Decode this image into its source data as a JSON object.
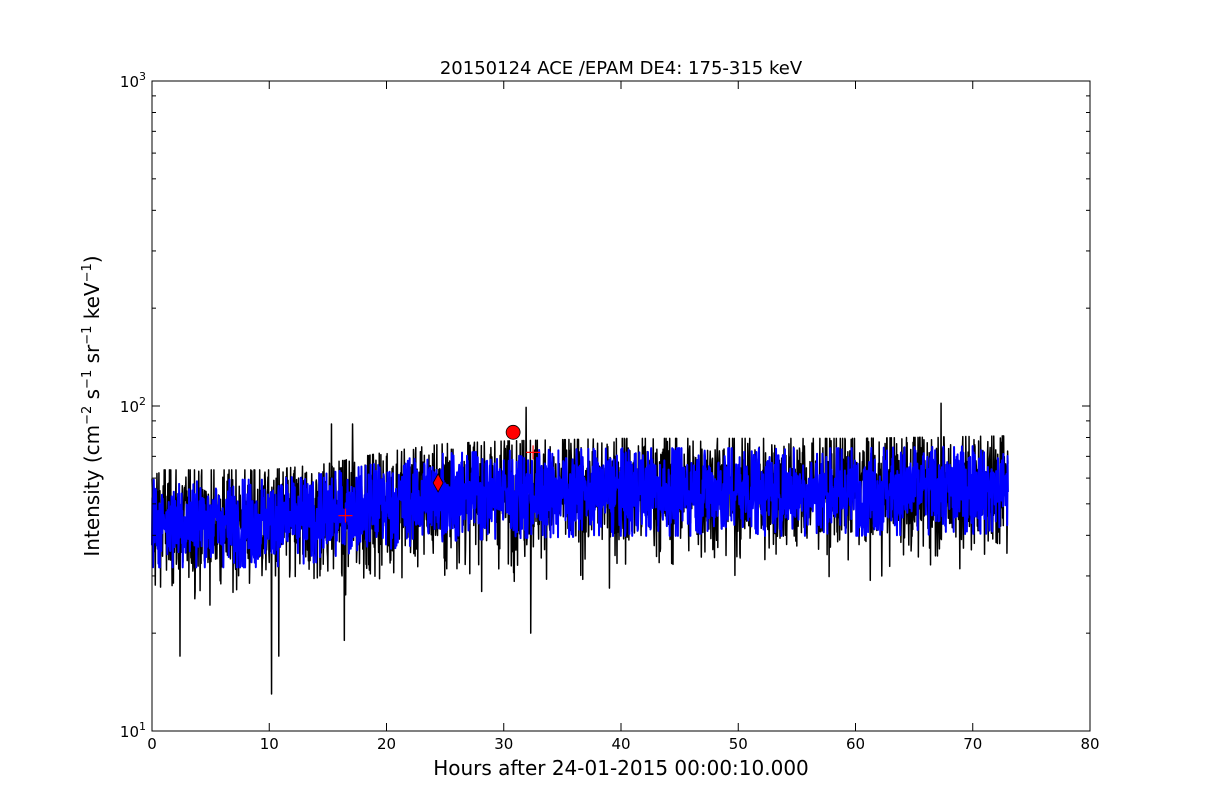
{
  "chart_data": {
    "type": "line",
    "title": "20150124 ACE /EPAM DE4: 175-315 keV",
    "xlabel": "Hours after 24-01-2015 00:00:10.000",
    "ylabel": {
      "base": "Intensity (cm",
      "exp1": "−2",
      "mid1": " s",
      "exp2": "−1",
      "mid2": " sr",
      "exp3": "−1",
      "mid3": " keV",
      "exp4": "−1",
      "end": ")"
    },
    "xlim": [
      0,
      80
    ],
    "ylim": [
      10,
      1000
    ],
    "yscale": "log",
    "grid": false,
    "x_ticks": [
      0,
      10,
      20,
      30,
      40,
      50,
      60,
      70,
      80
    ],
    "x_tick_labels": [
      "0",
      "10",
      "20",
      "30",
      "40",
      "50",
      "60",
      "70",
      "80"
    ],
    "y_major_ticks": [
      10,
      100,
      1000
    ],
    "y_tick_labels": [
      {
        "base": "10",
        "exp": "1"
      },
      {
        "base": "10",
        "exp": "2"
      },
      {
        "base": "10",
        "exp": "3"
      }
    ],
    "series": [
      {
        "kind": "raw",
        "color": "#000000",
        "x_range": [
          0,
          73
        ],
        "baseline": [
          [
            0,
            44
          ],
          [
            10,
            44
          ],
          [
            15,
            46
          ],
          [
            20,
            50
          ],
          [
            25,
            53
          ],
          [
            30,
            54
          ],
          [
            40,
            55
          ],
          [
            50,
            55
          ],
          [
            60,
            55
          ],
          [
            73,
            56
          ]
        ],
        "spread_log10": 0.1,
        "spikes": [
          [
            10.2,
            13
          ],
          [
            31.9,
            15
          ],
          [
            2.4,
            17
          ],
          [
            10.8,
            17
          ],
          [
            16.4,
            19
          ],
          [
            32.3,
            20
          ],
          [
            31.9,
            99
          ],
          [
            67.3,
            102
          ],
          [
            15.3,
            88
          ],
          [
            17.1,
            88
          ]
        ]
      },
      {
        "kind": "smoothed",
        "color": "#0000ff",
        "x_range": [
          0,
          73
        ],
        "baseline": [
          [
            0,
            44
          ],
          [
            10,
            44
          ],
          [
            15,
            46
          ],
          [
            20,
            50
          ],
          [
            25,
            53
          ],
          [
            30,
            54
          ],
          [
            40,
            55
          ],
          [
            50,
            55
          ],
          [
            60,
            55
          ],
          [
            73,
            56
          ]
        ],
        "spread_log10": 0.07
      }
    ],
    "markers": [
      {
        "shape": "plus",
        "x": 16.5,
        "y": 46,
        "color": "#ff0000"
      },
      {
        "shape": "diamond",
        "x": 24.4,
        "y": 58,
        "color": "#ff0000"
      },
      {
        "shape": "circle",
        "x": 30.8,
        "y": 83,
        "color": "#ff0000"
      },
      {
        "shape": "plus",
        "x": 32.5,
        "y": 72,
        "color": "#ff0000"
      }
    ]
  }
}
